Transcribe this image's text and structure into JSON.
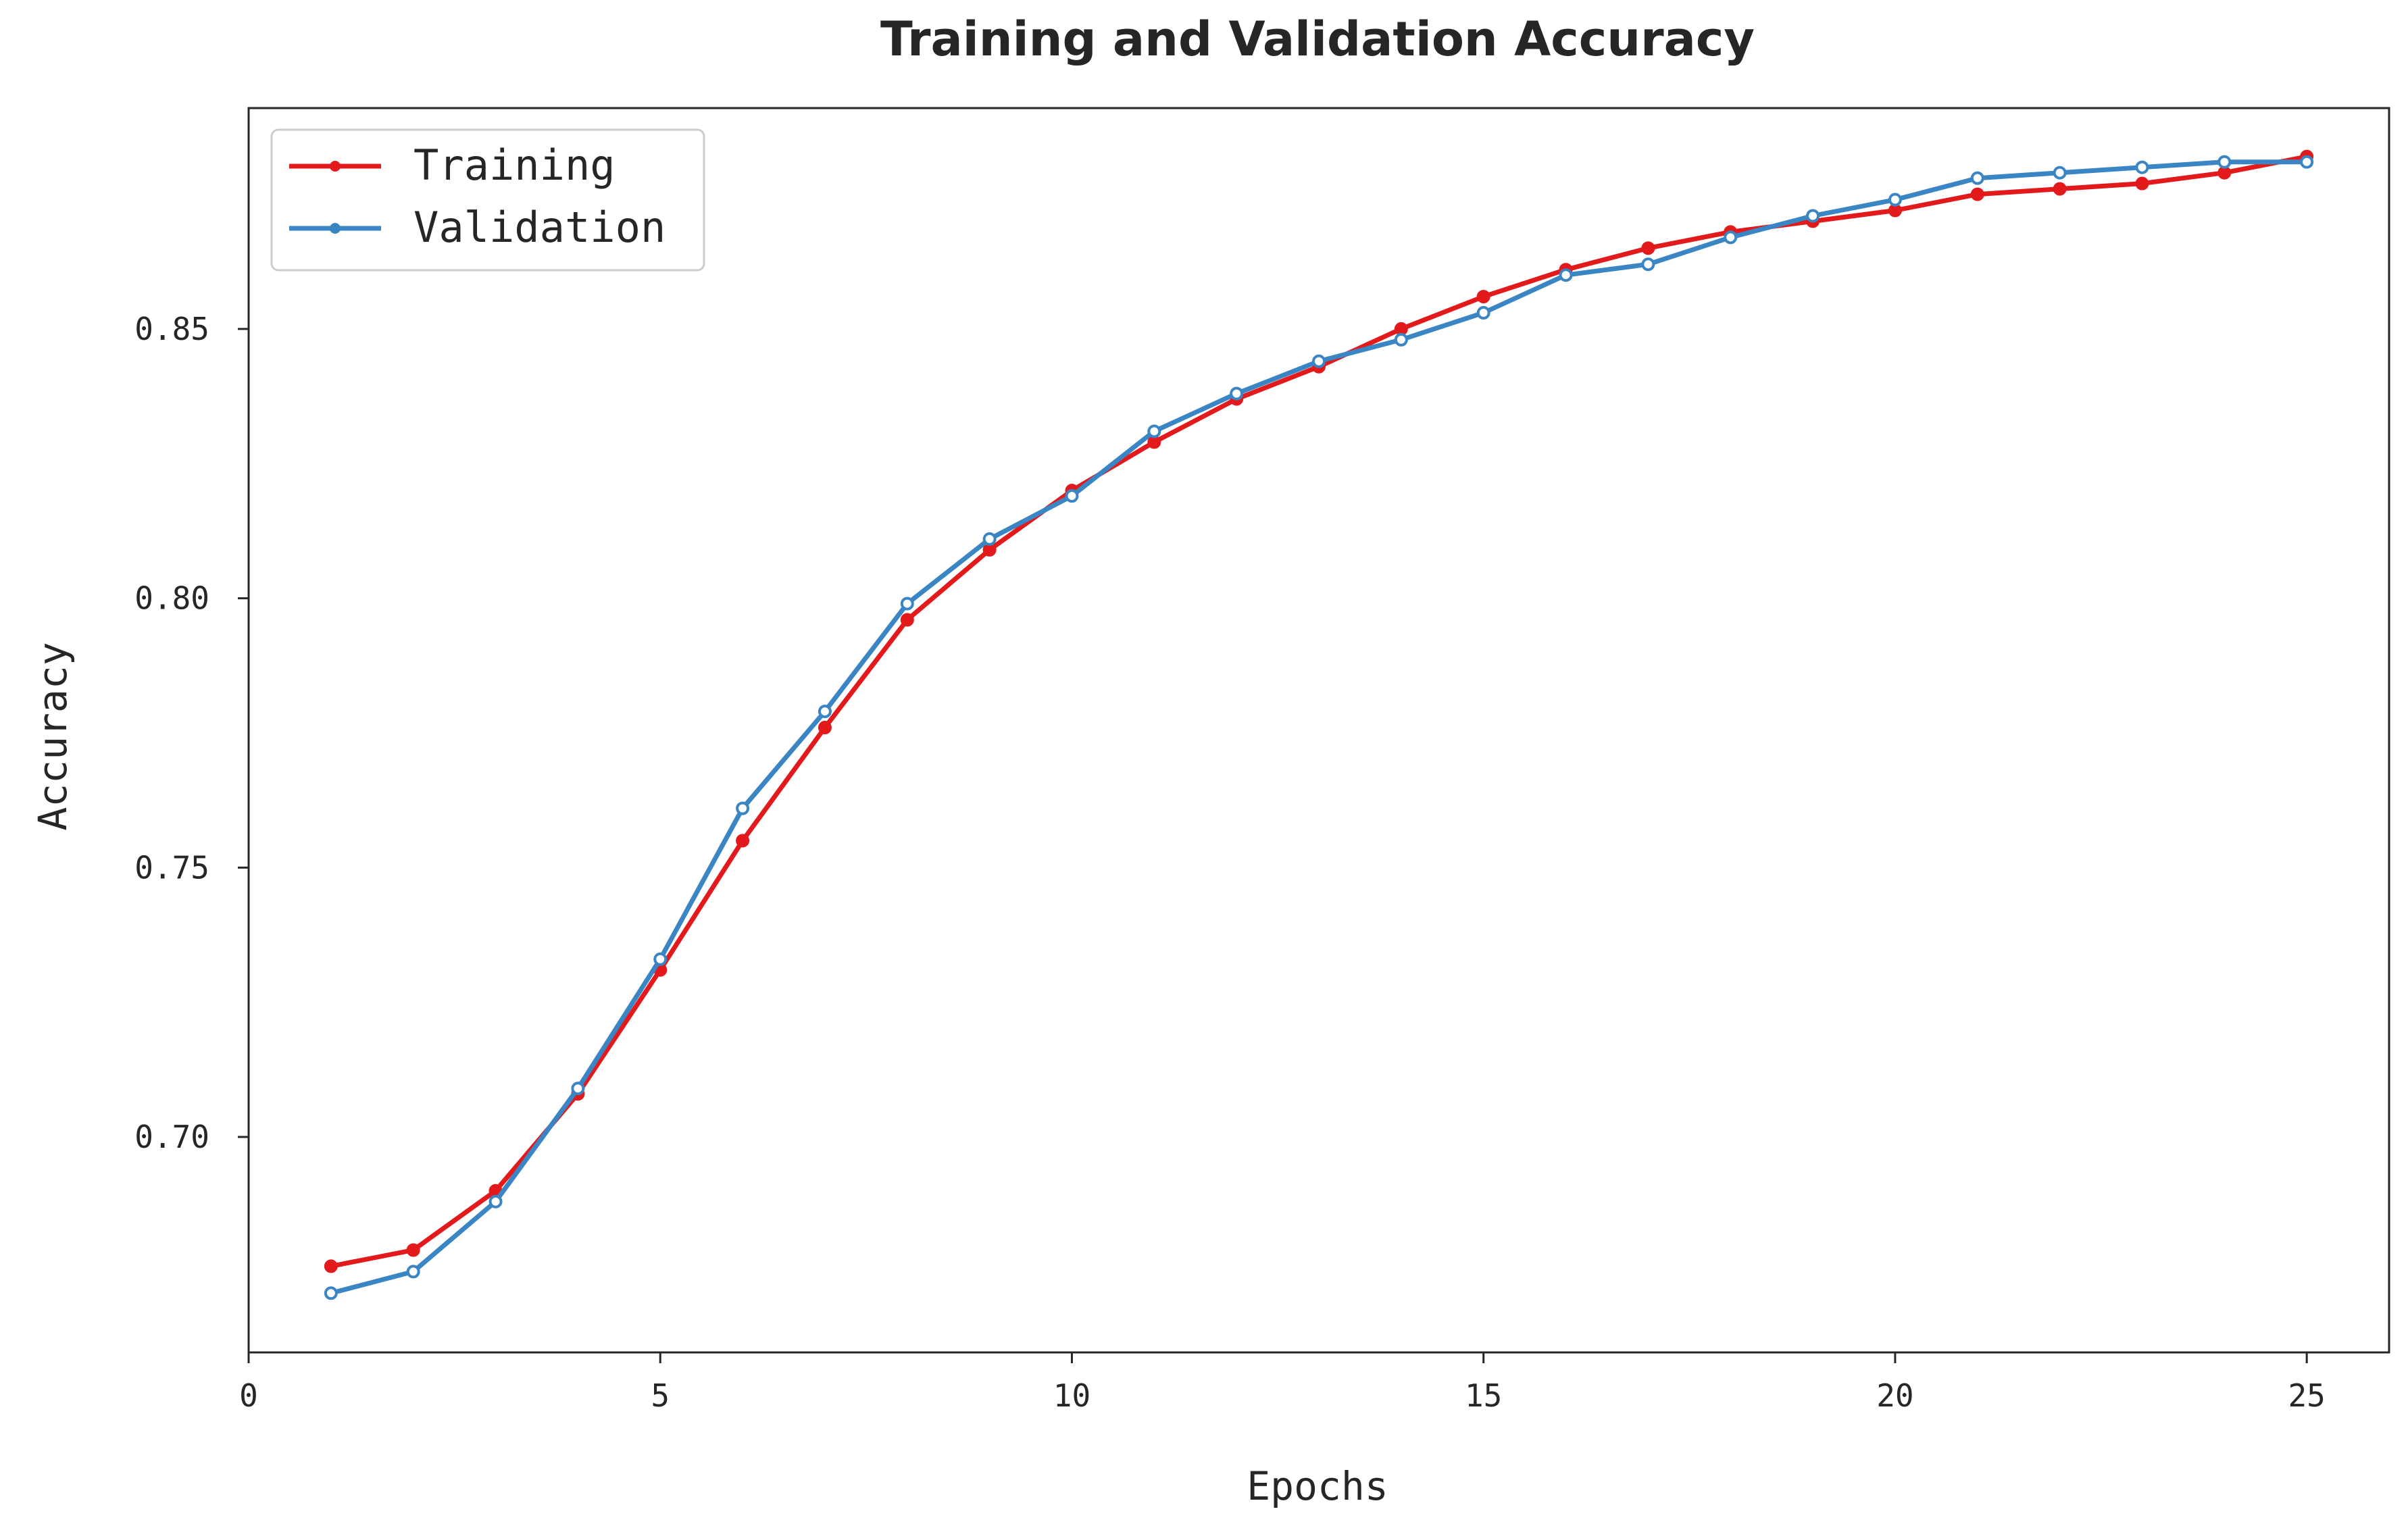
{
  "chart_data": {
    "type": "line",
    "title": "Training and Validation Accuracy",
    "xlabel": "Epochs",
    "ylabel": "Accuracy",
    "xlim": [
      0,
      26
    ],
    "ylim": [
      0.66,
      0.891
    ],
    "xticks": [
      0,
      5,
      10,
      15,
      20,
      25
    ],
    "yticks": [
      0.7,
      0.75,
      0.8,
      0.85
    ],
    "x": [
      1,
      2,
      3,
      4,
      5,
      6,
      7,
      8,
      9,
      10,
      11,
      12,
      13,
      14,
      15,
      16,
      17,
      18,
      19,
      20,
      21,
      22,
      23,
      24,
      25
    ],
    "grid": false,
    "legend_position": "top-left",
    "series": [
      {
        "name": "Training",
        "color": "#e31a1c",
        "values": [
          0.676,
          0.679,
          0.69,
          0.708,
          0.731,
          0.755,
          0.776,
          0.796,
          0.809,
          0.82,
          0.829,
          0.837,
          0.843,
          0.85,
          0.856,
          0.861,
          0.865,
          0.868,
          0.87,
          0.872,
          0.875,
          0.876,
          0.877,
          0.879,
          0.882
        ]
      },
      {
        "name": "Validation",
        "color": "#3a85c4",
        "values": [
          0.671,
          0.675,
          0.688,
          0.709,
          0.733,
          0.761,
          0.779,
          0.799,
          0.811,
          0.819,
          0.831,
          0.838,
          0.844,
          0.848,
          0.853,
          0.86,
          0.862,
          0.867,
          0.871,
          0.874,
          0.878,
          0.879,
          0.88,
          0.881,
          0.881
        ]
      }
    ]
  }
}
